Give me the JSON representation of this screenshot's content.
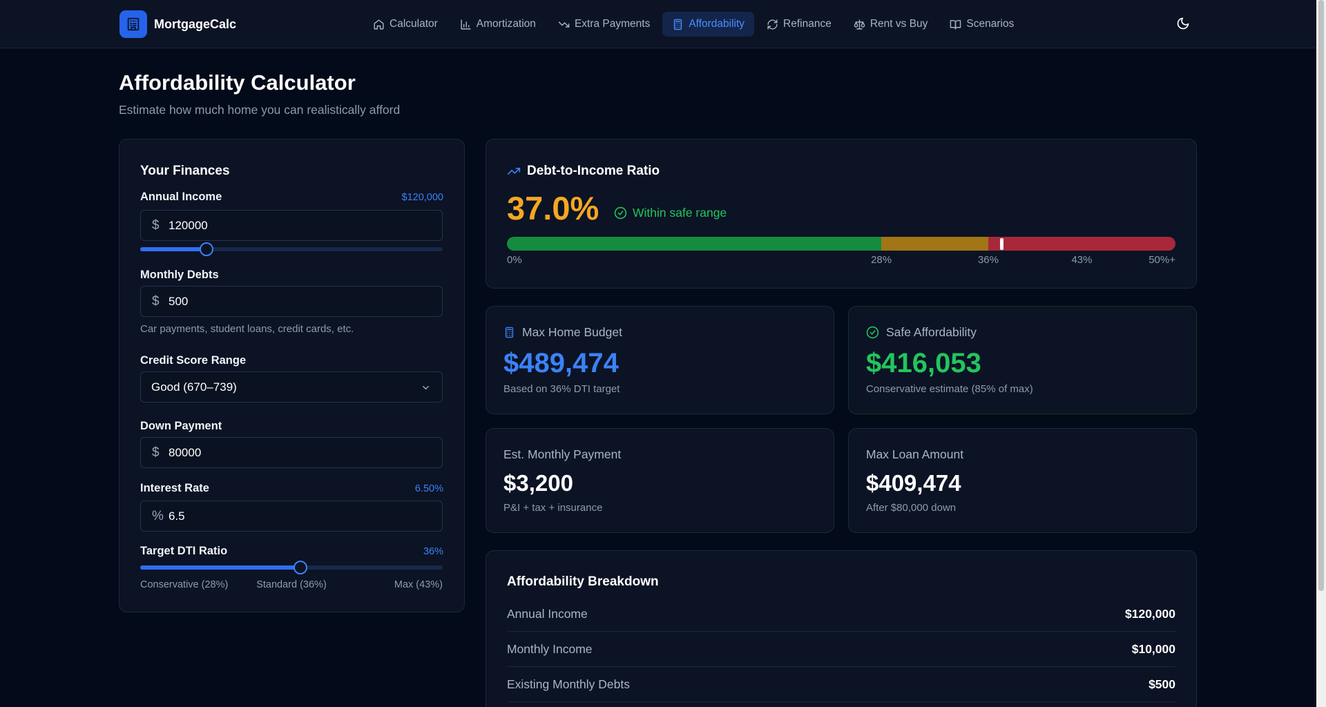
{
  "app": {
    "name": "MortgageCalc"
  },
  "nav": [
    {
      "label": "Calculator",
      "icon": "home-icon"
    },
    {
      "label": "Amortization",
      "icon": "bar-chart-icon"
    },
    {
      "label": "Extra Payments",
      "icon": "trending-down-icon"
    },
    {
      "label": "Affordability",
      "icon": "calculator-icon",
      "active": true
    },
    {
      "label": "Refinance",
      "icon": "refresh-icon"
    },
    {
      "label": "Rent vs Buy",
      "icon": "scale-icon"
    },
    {
      "label": "Scenarios",
      "icon": "book-icon"
    }
  ],
  "page": {
    "title": "Affordability Calculator",
    "subtitle": "Estimate how much home you can realistically afford"
  },
  "form": {
    "title": "Your Finances",
    "annual_income": {
      "label": "Annual Income",
      "display": "$120,000",
      "prefix": "$",
      "value": "120000",
      "slider_fraction": 0.22
    },
    "monthly_debts": {
      "label": "Monthly Debts",
      "prefix": "$",
      "value": "500",
      "help": "Car payments, student loans, credit cards, etc."
    },
    "credit_score": {
      "label": "Credit Score Range",
      "selected": "Good (670–739)"
    },
    "down_payment": {
      "label": "Down Payment",
      "prefix": "$",
      "value": "80000"
    },
    "interest_rate": {
      "label": "Interest Rate",
      "display": "6.50%",
      "prefix": "%",
      "value": "6.5"
    },
    "target_dti": {
      "label": "Target DTI Ratio",
      "display": "36%",
      "slider_fraction": 0.53,
      "ticks": [
        "Conservative (28%)",
        "Standard (36%)",
        "Max (43%)"
      ]
    }
  },
  "dti": {
    "title": "Debt-to-Income Ratio",
    "value": "37.0%",
    "status": "Within safe range",
    "bar": {
      "max": 50,
      "segments": [
        {
          "from": 0,
          "to": 28,
          "zone": "green"
        },
        {
          "from": 28,
          "to": 36,
          "zone": "amber"
        },
        {
          "from": 36,
          "to": 50,
          "zone": "red"
        }
      ],
      "marker_value": 37.0,
      "tick_values": [
        0,
        28,
        36,
        43,
        50
      ],
      "tick_labels": [
        "0%",
        "28%",
        "36%",
        "43%",
        "50%+"
      ]
    }
  },
  "stats": {
    "max_home_budget": {
      "label": "Max Home Budget",
      "value": "$489,474",
      "sub": "Based on 36% DTI target"
    },
    "safe_affordability": {
      "label": "Safe Affordability",
      "value": "$416,053",
      "sub": "Conservative estimate (85% of max)"
    },
    "est_monthly_payment": {
      "label": "Est. Monthly Payment",
      "value": "$3,200",
      "sub": "P&I + tax + insurance"
    },
    "max_loan_amount": {
      "label": "Max Loan Amount",
      "value": "$409,474",
      "sub": "After $80,000 down"
    }
  },
  "breakdown": {
    "title": "Affordability Breakdown",
    "rows": [
      {
        "label": "Annual Income",
        "value": "$120,000"
      },
      {
        "label": "Monthly Income",
        "value": "$10,000"
      },
      {
        "label": "Existing Monthly Debts",
        "value": "$500"
      }
    ]
  },
  "colors": {
    "accent": "#3b82f6",
    "warning": "#f5a623",
    "success": "#22c55e",
    "background": "#030a19"
  }
}
